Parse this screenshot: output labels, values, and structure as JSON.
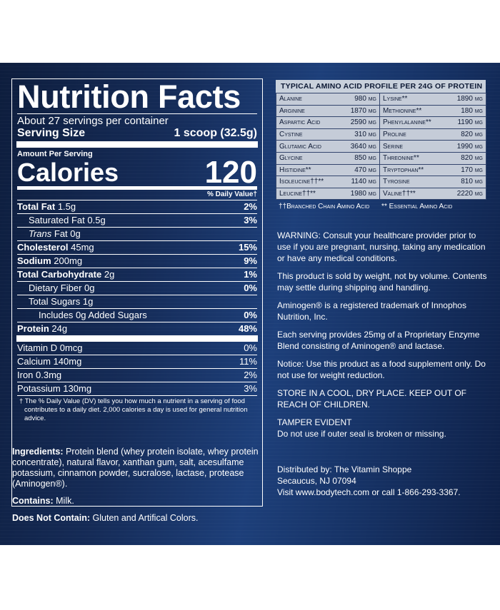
{
  "nutrition": {
    "title": "Nutrition Facts",
    "servings": "About 27 servings per container",
    "serving_size_label": "Serving Size",
    "serving_size_value": "1 scoop (32.5g)",
    "amount_per_serving": "Amount Per Serving",
    "calories_label": "Calories",
    "calories_value": "120",
    "dv_header": "% Daily Value†",
    "rows": [
      {
        "bold_label": "Total Fat",
        "amount": "1.5g",
        "dv": "2%"
      },
      {
        "label": "Saturated Fat 0.5g",
        "dv": "3%"
      },
      {
        "italic_label": "Trans",
        "label": "Fat 0g",
        "dv": ""
      },
      {
        "bold_label": "Cholesterol",
        "amount": "45mg",
        "dv": "15%"
      },
      {
        "bold_label": "Sodium",
        "amount": "200mg",
        "dv": "9%"
      },
      {
        "bold_label": "Total Carbohydrate",
        "amount": "2g",
        "dv": "1%"
      },
      {
        "label": "Dietary Fiber 0g",
        "dv": "0%"
      },
      {
        "label": "Total Sugars 1g",
        "dv": ""
      },
      {
        "label": "Includes 0g Added Sugars",
        "dv": "0%"
      },
      {
        "bold_label": "Protein",
        "amount": "24g",
        "dv": "48%"
      }
    ],
    "vitamins": [
      {
        "label": "Vitamin D 0mcg",
        "dv": "0%"
      },
      {
        "label": "Calcium 140mg",
        "dv": "11%"
      },
      {
        "label": "Iron 0.3mg",
        "dv": "2%"
      },
      {
        "label": "Potassium 130mg",
        "dv": "3%"
      }
    ],
    "footnote": "† The % Daily Value (DV) tells you how much a nutrient in a serving of food contributes to a daily diet. 2,000 calories a day is used for general nutrition advice."
  },
  "ingredients": {
    "label": "Ingredients:",
    "text": "Protein blend (whey protein isolate, whey protein concentrate), natural flavor, xanthan gum, salt, acesulfame potassium, cinnamon powder, sucralose, lactase, protease (Aminogen®).",
    "contains_label": "Contains:",
    "contains_text": "Milk.",
    "not_contain_label": "Does Not Contain:",
    "not_contain_text": "Gluten and Artifical Colors."
  },
  "amino": {
    "title": "Typical Amino Acid Profile per 24g of Protein",
    "rows": [
      [
        "Alanine",
        "980 mg",
        "Lysine**",
        "1890 mg"
      ],
      [
        "Arginine",
        "1870 mg",
        "Methionine**",
        "180 mg"
      ],
      [
        "Aspartic Acid",
        "2590 mg",
        "Phenylalanine**",
        "1190 mg"
      ],
      [
        "Cystine",
        "310 mg",
        "Proline",
        "820 mg"
      ],
      [
        "Glutamic Acid",
        "3640 mg",
        "Serine",
        "1990 mg"
      ],
      [
        "Glycine",
        "850 mg",
        "Threonine**",
        "820 mg"
      ],
      [
        "Histidine**",
        "470 mg",
        "Tryptophan**",
        "170 mg"
      ],
      [
        "Isoleucine††**",
        "1140 mg",
        "Tyrosine",
        "810 mg"
      ],
      [
        "Leucine††**",
        "1980 mg",
        "Valine††**",
        "2220 mg"
      ]
    ],
    "note_bcaa": "††Branched Chain Amino Acid",
    "note_eaa": "** Essential Amino Acid"
  },
  "notices": [
    "WARNING: Consult your healthcare provider prior to use if you are pregnant, nursing, taking any medication or have any medical conditions.",
    "This product is sold by weight, not by volume. Contents may settle during shipping and handling.",
    "Aminogen® is a registered trademark of Innophos Nutrition, Inc.",
    "Each serving provides 25mg of a Proprietary Enzyme Blend consisting of Aminogen® and lactase.",
    "Notice: Use this product as a food supplement only. Do not use for weight reduction.",
    "STORE IN A COOL, DRY PLACE. KEEP OUT OF REACH OF CHILDREN.",
    "TAMPER EVIDENT"
  ],
  "tamper_text": "Do not use if outer seal is broken or missing.",
  "distributor": {
    "line1": "Distributed by: The Vitamin Shoppe",
    "line2": "Secaucus, NJ 07094",
    "line3": "Visit www.bodytech.com or call 1-866-293-3367."
  }
}
